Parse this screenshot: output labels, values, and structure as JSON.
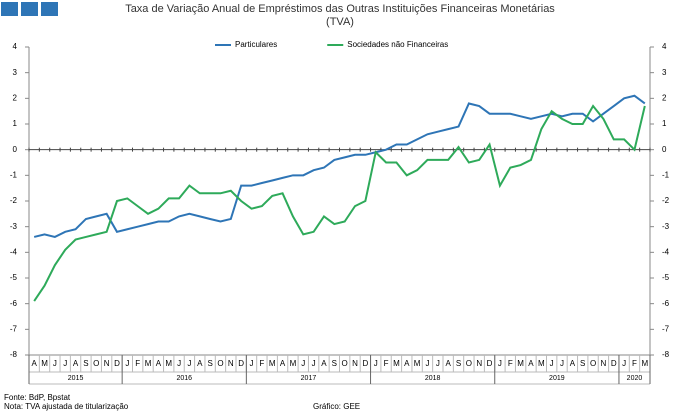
{
  "chart_data": {
    "type": "line",
    "title": "Taxa de Variação Anual de Empréstimos das Outras Instituições Financeiras Monetárias",
    "subtitle": "(TVA)",
    "categories": [
      "A",
      "M",
      "J",
      "J",
      "A",
      "S",
      "O",
      "N",
      "D",
      "J",
      "F",
      "M",
      "A",
      "M",
      "J",
      "J",
      "A",
      "S",
      "O",
      "N",
      "D",
      "J",
      "F",
      "M",
      "A",
      "M",
      "J",
      "J",
      "A",
      "S",
      "O",
      "N",
      "D",
      "J",
      "F",
      "M",
      "A",
      "M",
      "J",
      "J",
      "A",
      "S",
      "O",
      "N",
      "D",
      "J",
      "F",
      "M",
      "A",
      "M",
      "J",
      "J",
      "A",
      "S",
      "O",
      "N",
      "D",
      "J",
      "F",
      "M"
    ],
    "years": [
      "2015",
      "2016",
      "2017",
      "2018",
      "2019",
      "2020"
    ],
    "series": [
      {
        "name": "Particulares",
        "color": "#2e75b6",
        "values": [
          -3.4,
          -3.3,
          -3.4,
          -3.2,
          -3.1,
          -2.7,
          -2.6,
          -2.5,
          -3.2,
          -3.1,
          -3.0,
          -2.9,
          -2.8,
          -2.8,
          -2.6,
          -2.5,
          -2.6,
          -2.7,
          -2.8,
          -2.7,
          -1.4,
          -1.4,
          -1.3,
          -1.2,
          -1.1,
          -1.0,
          -1.0,
          -0.8,
          -0.7,
          -0.4,
          -0.3,
          -0.2,
          -0.2,
          -0.1,
          0.0,
          0.2,
          0.2,
          0.4,
          0.6,
          0.7,
          0.8,
          0.9,
          1.8,
          1.7,
          1.4,
          1.4,
          1.4,
          1.3,
          1.2,
          1.3,
          1.4,
          1.3,
          1.4,
          1.4,
          1.1,
          1.4,
          1.7,
          2.0,
          2.1,
          1.8
        ]
      },
      {
        "name": "Sociedades não Financeiras",
        "color": "#2eaa5a",
        "values": [
          -5.9,
          -5.3,
          -4.5,
          -3.9,
          -3.5,
          -3.4,
          -3.3,
          -3.2,
          -2.0,
          -1.9,
          -2.2,
          -2.5,
          -2.3,
          -1.9,
          -1.9,
          -1.4,
          -1.7,
          -1.7,
          -1.7,
          -1.6,
          -2.0,
          -2.3,
          -2.2,
          -1.8,
          -1.7,
          -2.6,
          -3.3,
          -3.2,
          -2.6,
          -2.9,
          -2.8,
          -2.2,
          -2.0,
          -0.1,
          -0.5,
          -0.5,
          -1.0,
          -0.8,
          -0.4,
          -0.4,
          -0.4,
          0.1,
          -0.5,
          -0.4,
          0.2,
          -1.4,
          -0.7,
          -0.6,
          -0.4,
          0.8,
          1.5,
          1.2,
          1.0,
          1.0,
          1.7,
          1.2,
          0.4,
          0.4,
          0.0,
          1.7
        ]
      }
    ],
    "ylim": [
      -8,
      4
    ],
    "yticks": [
      -8,
      -7,
      -6,
      -5,
      -4,
      -3,
      -2,
      -1,
      0,
      1,
      2,
      3,
      4
    ],
    "y2lim": [
      -8,
      4
    ],
    "y2ticks": [
      -8,
      -7,
      -6,
      -5,
      -4,
      -3,
      -2,
      -1,
      0,
      1,
      2,
      3,
      4
    ],
    "legend": "top",
    "notes": [
      "Fonte: BdP, Bpstat",
      "Nota: TVA ajustada de titularização"
    ],
    "credit": "Gráfico: GEE"
  }
}
